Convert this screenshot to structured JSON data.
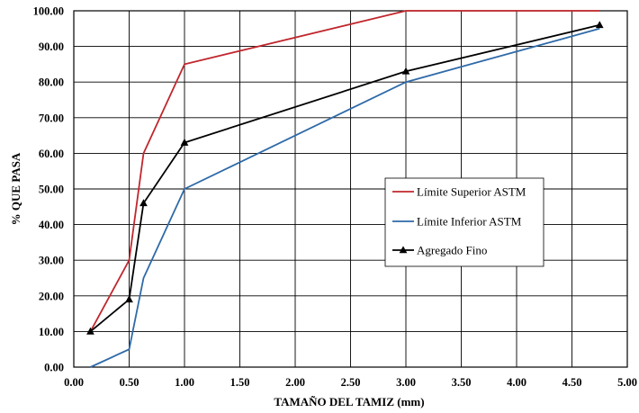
{
  "chart_data": {
    "type": "line",
    "xlabel": "TAMAÑO DEL TAMIZ (mm)",
    "ylabel": "% QUE PASA",
    "xlim": [
      0,
      5
    ],
    "ylim": [
      0,
      100
    ],
    "x_ticks": [
      "0.00",
      "0.50",
      "1.00",
      "1.50",
      "2.00",
      "2.50",
      "3.00",
      "3.50",
      "4.00",
      "4.50",
      "5.00"
    ],
    "y_ticks": [
      "0.00",
      "10.00",
      "20.00",
      "30.00",
      "40.00",
      "50.00",
      "60.00",
      "70.00",
      "80.00",
      "90.00",
      "100.00"
    ],
    "grid": true,
    "legend_position": "center-right",
    "series": [
      {
        "name": "Límite Superior ASTM",
        "color": "#c0272d",
        "marker": "none",
        "x": [
          0.15,
          0.5,
          0.63,
          1.0,
          3.0,
          4.75
        ],
        "y": [
          10,
          30,
          60,
          85,
          100,
          100
        ]
      },
      {
        "name": "Límite Inferior ASTM",
        "color": "#2e6aa8",
        "marker": "none",
        "x": [
          0.15,
          0.5,
          0.63,
          1.0,
          3.0,
          4.75
        ],
        "y": [
          0,
          5,
          25,
          50,
          80,
          95
        ]
      },
      {
        "name": "Agregado Fino",
        "color": "#000000",
        "marker": "triangle",
        "x": [
          0.15,
          0.5,
          0.63,
          1.0,
          3.0,
          4.75
        ],
        "y": [
          10,
          19,
          46,
          63,
          83,
          96
        ]
      }
    ]
  }
}
